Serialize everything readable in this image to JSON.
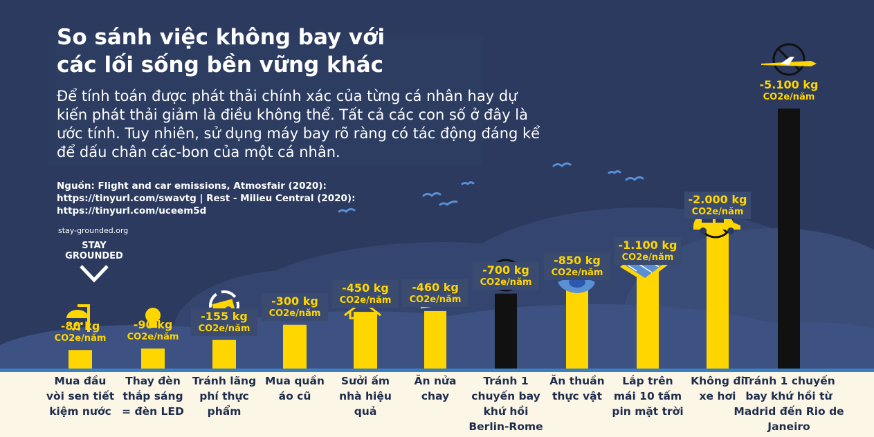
{
  "header": {
    "title_line1": "So sánh việc không bay với",
    "title_line2": "các lối sống bền vững khác",
    "subtitle": "Để tính toán được phát thải chính xác của từng cá nhân hay dự kiến phát thải giảm là điều không thể. Tất cả các con số ở đây là ước tính. Tuy nhiên, sử dụng máy bay rõ ràng có tác động đáng kể để dấu chân các-bon của một cá nhân.",
    "source": "Nguồn: Flight and car emissions, Atmosfair (2020): https://tinyurl.com/swavtg | Rest - Milieu Central (2020): https://tinyurl.com/uceem5d",
    "site": "stay-grounded.org",
    "logo_line1": "STAY",
    "logo_line2": "GROUNDED"
  },
  "colors": {
    "background": "#2b3a5e",
    "bar_yellow": "#ffd600",
    "bar_black": "#111111",
    "ground": "#fbf6e6",
    "label_text": "#1f2d4d"
  },
  "chart_data": {
    "type": "bar",
    "unit": "CO2e/năm",
    "ylim": [
      0,
      5100
    ],
    "bars": [
      {
        "label": "Mua đầu vòi sen tiết kiệm nước",
        "value": 80,
        "display": "-80 kg",
        "color": "yellow",
        "icon": "shower-icon"
      },
      {
        "label": "Thay đèn thắp sáng = đèn LED",
        "value": 90,
        "display": "-90 kg",
        "color": "yellow",
        "icon": "lightbulb-icon"
      },
      {
        "label": "Tránh lãng phí thực phẩm",
        "value": 155,
        "display": "-155 kg",
        "color": "yellow",
        "icon": "recycle-food-icon"
      },
      {
        "label": "Mua quần áo cũ",
        "value": 300,
        "display": "-300 kg",
        "color": "yellow",
        "icon": "secondhand-clothes-icon"
      },
      {
        "label": "Sưởi ấm nhà hiệu quả",
        "value": 450,
        "display": "-450 kg",
        "color": "yellow",
        "icon": "house-icon"
      },
      {
        "label": "Ăn nửa chay",
        "value": 460,
        "display": "-460 kg",
        "color": "yellow",
        "icon": "cheese-icon"
      },
      {
        "label": "Tránh 1 chuyến bay khứ hồi Berlin-Rome",
        "value": 700,
        "display": "-700 kg",
        "color": "black",
        "icon": "no-plane-icon"
      },
      {
        "label": "Ăn thuần thực vật",
        "value": 850,
        "display": "-850 kg",
        "color": "yellow",
        "icon": "vegan-food-icon"
      },
      {
        "label": "Lắp trên mái 10 tấm pin mặt trời",
        "value": 1100,
        "display": "-1.100 kg",
        "color": "yellow",
        "icon": "solar-panel-icon"
      },
      {
        "label": "Không đi xe hơi",
        "value": 2000,
        "display": "-2.000 kg",
        "color": "yellow",
        "icon": "no-car-icon"
      },
      {
        "label": "Tránh 1 chuyến bay khứ hồi từ Madrid đến Rio de Janeiro",
        "value": 5100,
        "display": "-5.100 kg",
        "color": "black",
        "icon": "no-plane-icon"
      }
    ]
  }
}
